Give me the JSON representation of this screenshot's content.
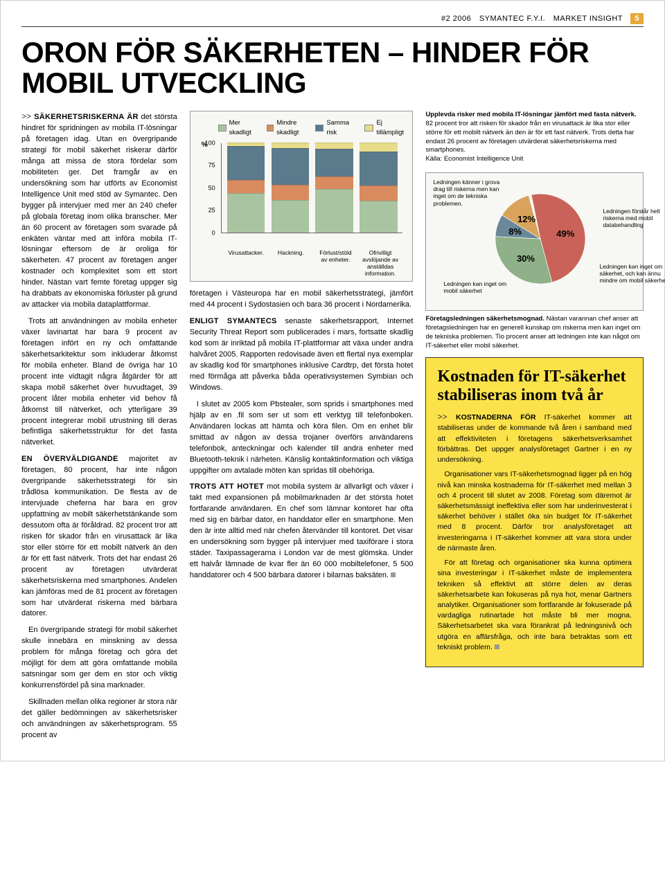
{
  "header": {
    "issue": "#2 2006",
    "brand": "SYMANTEC F.Y.I.",
    "section": "MARKET INSIGHT",
    "page_num": "5"
  },
  "title": "ORON FÖR SÄKERHETEN – HINDER FÖR MOBIL UTVECKLING",
  "col1": {
    "lead": "SÄKERHETSRISKERNA ÄR det största hindret för spridningen av mobila IT-lösningar på företagen idag. Utan en övergripande strategi för mobil säkerhet riskerar därför många att missa de stora fördelar som mobiliteten ger. Det framgår av en undersökning som har utförts av Economist Intelligence Unit med stöd av Symantec. Den bygger på intervjuer med mer än 240 chefer på globala företag inom olika branscher. Mer än 60 procent av företagen som svarade på enkäten väntar med att införa mobila IT-lösningar eftersom de är oroliga för säkerheten. 47 procent av företagen anger kostnader och komplexitet som ett stort hinder. Nästan vart femte företag uppger sig ha drabbats av ekonomiska förluster på grund av attacker via mobila dataplattformar.",
    "p2": "Trots att användningen av mobila enheter växer lavinartat har bara 9 procent av företagen infört en ny och omfattande säkerhetsarkitektur som inkluderar åtkomst för mobila enheter. Bland de övriga har 10 procent inte vidtagit några åtgärder för att skapa mobil säkerhet över huvudtaget, 39 procent låter mobila enheter vid behov få åtkomst till nätverket, och ytterligare 39 procent integrerar mobil utrustning till deras befintliga säkerhetsstruktur för det fasta nätverket.",
    "p3_caps": "EN ÖVERVÄLDIGANDE",
    "p3": " majoritet av företagen, 80 procent, har inte någon övergripande säkerhetsstrategi för sin trådlösa kommunikation. De flesta av de intervjuade cheferna har bara en grov uppfattning av mobilt säkerhetstänkande som dessutom ofta är föråldrad. 82 procent tror att risken för skador från en virusattack är lika stor eller större för ett mobilt nätverk än den är för ett fast nätverk. Trots det har endast 26 procent av företagen utvärderat säkerhetsriskerna med smartphones. Andelen kan jämföras med de 81 procent av företagen som har utvärderat riskerna med bärbara datorer.",
    "p4": "En övergripande strategi för mobil säkerhet skulle innebära en minskning av dessa problem för många företag och göra det möjligt för dem att göra omfattande mobila satsningar som ger dem en stor och viktig konkurrensfördel på sina marknader.",
    "p5": "Skillnaden mellan olika regioner är stora när det gäller bedömningen av säkerhetsrisker och användningen av säkerhetsprogram. 55 procent av"
  },
  "col2": {
    "p1": "företagen i Västeuropa har en mobil säkerhetsstrategi, jämfört med 44 procent i Sydostasien och bara 36 procent i Nordamerika.",
    "p2_caps": "ENLIGT SYMANTECS",
    "p2": " senaste säkerhetsrapport, Internet Security Threat Report som publicerades i mars, fortsatte skadlig kod som är inriktad på mobila IT-plattformar att växa under andra halvåret 2005. Rapporten redovisade även ett flertal nya exemplar av skadlig kod för smartphones inklusive Cardtrp, det första hotet med förmåga att påverka båda operativsystemen Symbian och Windows.",
    "p3": "I slutet av 2005 kom Pbstealer, som sprids i smartphones med hjälp av en .fil som ser ut som ett verktyg till telefonboken. Användaren lockas att hämta och köra filen. Om en enhet blir smittad av någon av dessa trojaner överförs användarens telefonbok, anteckningar och kalender till andra enheter med Bluetooth-teknik i närheten. Känslig kontaktinformation och viktiga uppgifter om avtalade möten kan spridas till obehöriga.",
    "p4_caps": "TROTS ATT HOTET",
    "p4": " mot mobila system är allvarligt och växer i takt med expansionen på mobilmarknaden är det största hotet fortfarande användaren. En chef som lämnar kontoret har ofta med sig en bärbar dator, en handdator eller en smartphone. Men den är inte alltid med när chefen återvänder till kontoret. Det visar en undersökning som bygger på intervjuer med taxiförare i stora städer. Taxipassagerarna i London var de mest glömska. Under ett halvår lämnade de kvar fler än 60 000 mobiltelefoner, 5 500 handdatorer och 4 500 bärbara datorer i bilarnas baksäten."
  },
  "bar_chart": {
    "legend": [
      {
        "label": "Mer skadligt",
        "color": "#a8c4a0"
      },
      {
        "label": "Mindre skadligt",
        "color": "#d98b5f"
      },
      {
        "label": "Samma risk",
        "color": "#5b7a8c"
      },
      {
        "label": "Ej tillämpligt",
        "color": "#e8dc8a"
      }
    ],
    "ylabel": "%",
    "ymax": 100,
    "yticks": [
      0,
      25,
      50,
      75,
      100
    ],
    "categories": [
      "Virusattacker.",
      "Hackning.",
      "Förlust/stöld av enheter.",
      "Ofrivilligt avslöjande av anställdas information."
    ],
    "stacks": [
      [
        44,
        14,
        38,
        4
      ],
      [
        36,
        17,
        41,
        6
      ],
      [
        48,
        14,
        31,
        7
      ],
      [
        35,
        17,
        38,
        10
      ]
    ],
    "background": "#f7f7f4",
    "border": "#999999"
  },
  "bar_caption_bold": "Upplevda risker med mobila IT-lösningar jämfört med fasta nätverk.",
  "bar_caption": " 82 procent tror att risken för skador från en virusattack är lika stor eller större för ett mobilt nätverk än den är för ett fast nätverk. Trots detta har endast 26 procent av företagen utvärderat säkerhetsriskerna med smartphones.\nKälla: Economist Intelligence Unit",
  "pie_chart": {
    "slices": [
      {
        "pct": 49,
        "color": "#c9635a",
        "label": "Ledningen känner i grova drag till riskerna men kan inget om de tekniska problemen."
      },
      {
        "pct": 30,
        "color": "#8fb088",
        "label": "Ledningen förstår helt riskerna med mobil databehandling"
      },
      {
        "pct": 8,
        "color": "#6a8899",
        "label": "Ledningen kan inget om säkerhet, och kan ännu mindre om mobil säkerhet"
      },
      {
        "pct": 12,
        "color": "#d9a35c",
        "label": "Ledningen kan inget om mobil säkerhet"
      }
    ],
    "background": "#f7f7f4"
  },
  "pie_caption_bold": "Företagsledningen säkerhetsmognad.",
  "pie_caption": " Nästan varannan chef anser att företagsledningen har en generell kunskap om riskerna men kan inget om de tekniska problemen. Tio procent anser att ledningen inte kan något om IT-säkerhet eller mobil säkerhet.",
  "yellow": {
    "title": "Kostnaden för IT-säkerhet stabiliseras inom två år",
    "lead_caps": "KOSTNADERNA FÖR",
    "p1": " IT-säkerhet kommer att stabiliseras under de kommande två åren i samband med att effektiviteten i företagens säkerhetsverksamhet förbättras. Det uppger analysföretaget Gartner i en ny undersökning.",
    "p2": "Organisationer vars IT-säkerhetsmognad ligger på en hög nivå kan minska kostnaderna för IT-säkerhet med mellan 3 och 4 procent till slutet av 2008. Företag som däremot är säkerhetsmässigt ineffektiva eller som har underinvesterat i säkerhet behöver i stället öka sin budget för IT-säkerhet med 8 procent. Därför tror analysföretaget att investeringarna i IT-säkerhet kommer att vara stora under de närmaste åren.",
    "p3": "För att företag och organisationer ska kunna optimera sina investeringar i IT-säkerhet måste de implementera tekniken så effektivt att större delen av deras säkerhetsarbete kan fokuseras på nya hot, menar Gartners analytiker. Organisationer som fortfarande är fokuserade på vardagliga rutinartade hot måste bli mer mogna. Säkerhetsarbetet ska vara förankrat på ledningsnivå och utgöra en affärsfråga, och inte bara betraktas som ett tekniskt problem."
  }
}
